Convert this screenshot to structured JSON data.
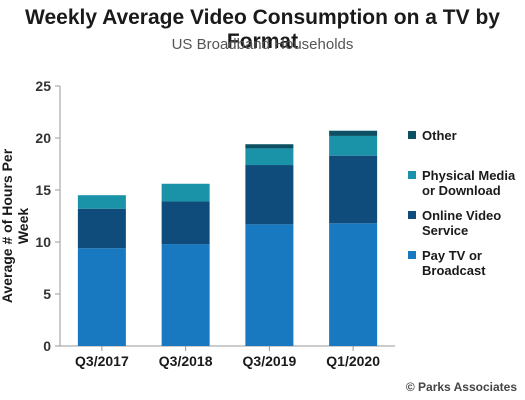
{
  "chart_data": {
    "type": "bar",
    "stacked": true,
    "title": "Weekly Average Video Consumption on a TV by Format",
    "subtitle": "US Broadband Households",
    "xlabel": "",
    "ylabel": "Average # of Hours Per Week",
    "categories": [
      "Q3/2017",
      "Q3/2018",
      "Q3/2019",
      "Q1/2020"
    ],
    "ylim": [
      0,
      25
    ],
    "yticks": [
      0,
      5,
      10,
      15,
      20,
      25
    ],
    "series": [
      {
        "name": "Pay TV or\nBroadcast",
        "color": "#1878c0",
        "values": [
          9.4,
          9.8,
          11.7,
          11.8
        ]
      },
      {
        "name": "Online Video\nService",
        "color": "#0f4c7c",
        "values": [
          3.8,
          4.1,
          5.7,
          6.5
        ]
      },
      {
        "name": "Physical Media\nor Download",
        "color": "#1a92a8",
        "values": [
          1.3,
          1.7,
          1.6,
          1.9
        ]
      },
      {
        "name": "Other",
        "color": "#0d4f63",
        "values": [
          0.0,
          0.0,
          0.4,
          0.5
        ]
      }
    ],
    "legend_order": [
      3,
      2,
      1,
      0
    ],
    "legend_position": "right",
    "grid": false
  },
  "credit": "© Parks Associates"
}
